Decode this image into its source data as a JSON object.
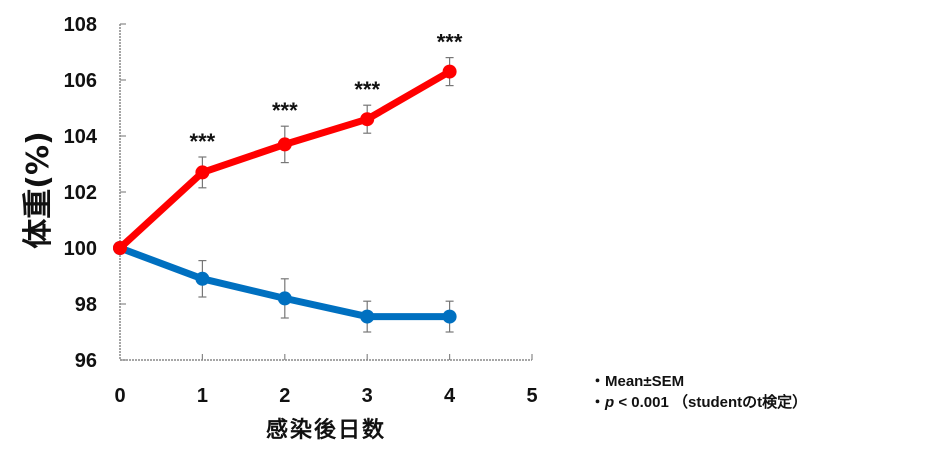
{
  "chart_data": {
    "type": "line",
    "title": "",
    "xlabel": "感染後日数",
    "ylabel": "体重(%)",
    "x": [
      0,
      1,
      2,
      3,
      4
    ],
    "xticks": [
      0,
      1,
      2,
      3,
      4,
      5
    ],
    "yticks": [
      96,
      98,
      100,
      102,
      104,
      106,
      108
    ],
    "xlim": [
      0,
      5
    ],
    "ylim": [
      96,
      108
    ],
    "grid": false,
    "legend": null,
    "series": [
      {
        "name": "red-group",
        "color": "#ff0000",
        "values": [
          100,
          102.7,
          103.7,
          104.6,
          106.3
        ],
        "sem": [
          0,
          0.55,
          0.65,
          0.5,
          0.5
        ]
      },
      {
        "name": "blue-group",
        "color": "#0070c0",
        "values": [
          100,
          98.9,
          98.2,
          97.55,
          97.55
        ],
        "sem": [
          0,
          0.65,
          0.7,
          0.55,
          0.55
        ]
      }
    ],
    "annotations": [
      {
        "x": 1,
        "text": "***"
      },
      {
        "x": 2,
        "text": "***"
      },
      {
        "x": 3,
        "text": "***"
      },
      {
        "x": 4,
        "text": "***"
      }
    ]
  },
  "notes": {
    "line1": "・Mean±SEM",
    "line2_bullet": "・",
    "line2_p": "p",
    "line2_rest": " < 0.001 （studentのt検定）"
  }
}
